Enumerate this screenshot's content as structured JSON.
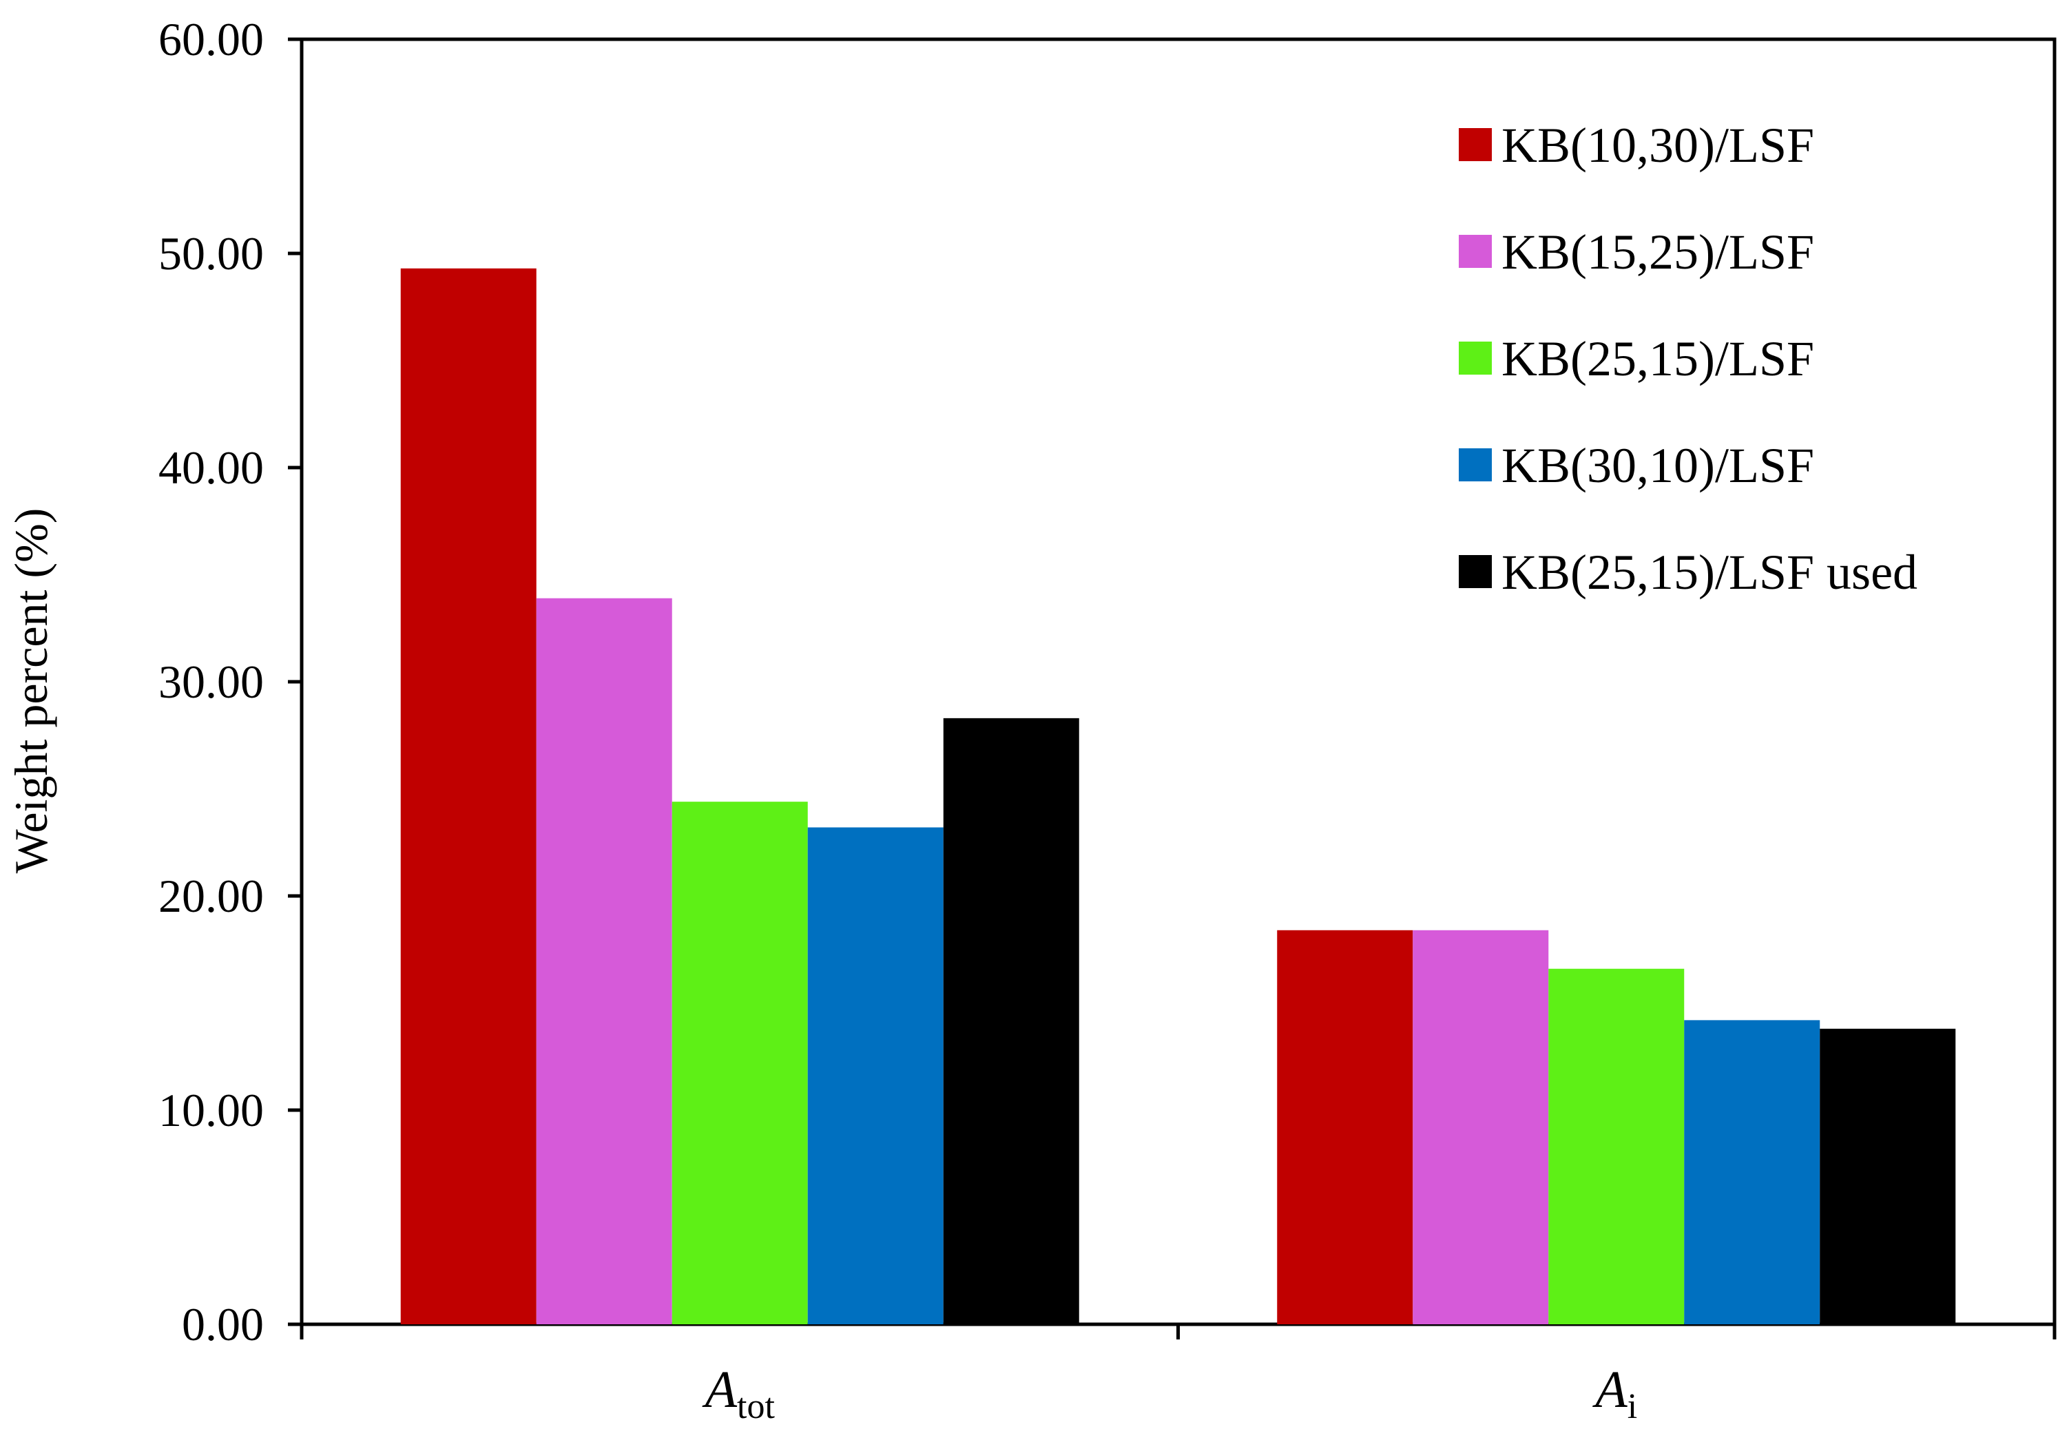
{
  "chart_data": {
    "type": "bar",
    "ylabel": "Weight percent (%)",
    "ylim": [
      0,
      60
    ],
    "yticks": [
      "0.00",
      "10.00",
      "20.00",
      "30.00",
      "40.00",
      "50.00",
      "60.00"
    ],
    "categories": [
      {
        "main": "A",
        "sub": "tot"
      },
      {
        "main": "A",
        "sub": "i"
      }
    ],
    "series": [
      {
        "name": "KB(10,30)/LSF",
        "color": "#c00000",
        "values": [
          49.3,
          18.4
        ]
      },
      {
        "name": "KB(15,25)/LSF",
        "color": "#d65ad9",
        "values": [
          33.9,
          18.4
        ]
      },
      {
        "name": "KB(25,15)/LSF",
        "color": "#5ef016",
        "values": [
          24.4,
          16.6
        ]
      },
      {
        "name": "KB(30,10)/LSF",
        "color": "#0070c0",
        "values": [
          23.2,
          14.2
        ]
      },
      {
        "name": "KB(25,15)/LSF used",
        "color": "#000000",
        "values": [
          28.3,
          13.8
        ]
      }
    ],
    "legend_position": "top-right",
    "grid": false
  }
}
